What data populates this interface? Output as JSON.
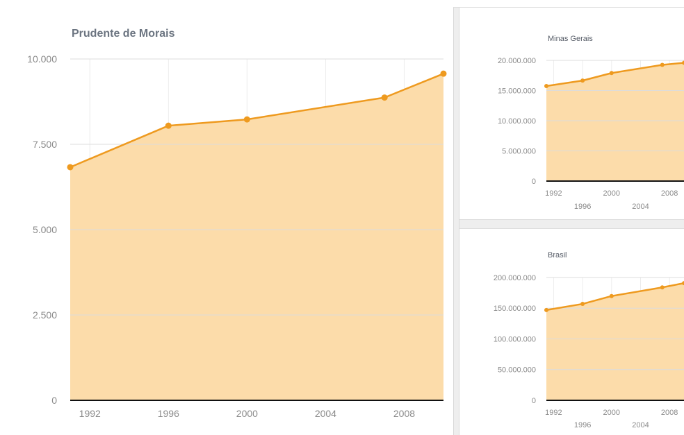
{
  "chart_data": [
    {
      "type": "area",
      "title": "Prudente de Morais",
      "x": [
        1991,
        1996,
        2000,
        2007,
        2010
      ],
      "values": [
        6830,
        8045,
        8230,
        8870,
        9570
      ],
      "ylim": [
        0,
        10000
      ],
      "xlim": [
        1991,
        2010
      ],
      "yticks": [
        "0",
        "2.500",
        "5.000",
        "7.500",
        "10.000"
      ],
      "ytick_values": [
        0,
        2500,
        5000,
        7500,
        10000
      ],
      "xticks": [
        "1992",
        "1996",
        "2000",
        "2004",
        "2008"
      ],
      "xtick_values": [
        1992,
        1996,
        2000,
        2004,
        2008
      ],
      "grid": true,
      "color": "#ee9a1f",
      "fill": "#fcdcaa"
    },
    {
      "type": "area",
      "title": "Minas Gerais",
      "x": [
        1991,
        1996,
        2000,
        2007,
        2010
      ],
      "values": [
        15750000,
        16650000,
        17900000,
        19250000,
        19600000
      ],
      "ylim": [
        0,
        20000000
      ],
      "xlim": [
        1991,
        2010
      ],
      "yticks": [
        "0",
        "5.000.000",
        "10.000.000",
        "15.000.000",
        "20.000.000"
      ],
      "ytick_values": [
        0,
        5000000,
        10000000,
        15000000,
        20000000
      ],
      "xticks": [
        "1992",
        "1996",
        "2000",
        "2004",
        "2008"
      ],
      "xtick_values": [
        1992,
        1996,
        2000,
        2004,
        2008
      ],
      "grid": true,
      "color": "#ee9a1f",
      "fill": "#fcdcaa"
    },
    {
      "type": "area",
      "title": "Brasil",
      "x": [
        1991,
        1996,
        2000,
        2007,
        2010
      ],
      "values": [
        147000000,
        157000000,
        169800000,
        183900000,
        190800000
      ],
      "ylim": [
        0,
        200000000
      ],
      "xlim": [
        1991,
        2010
      ],
      "yticks": [
        "0",
        "50.000.000",
        "100.000.000",
        "150.000.000",
        "200.000.000"
      ],
      "ytick_values": [
        0,
        50000000,
        100000000,
        150000000,
        200000000
      ],
      "xticks": [
        "1992",
        "1996",
        "2000",
        "2004",
        "2008"
      ],
      "xtick_values": [
        1992,
        1996,
        2000,
        2004,
        2008
      ],
      "grid": true,
      "color": "#ee9a1f",
      "fill": "#fcdcaa"
    }
  ]
}
